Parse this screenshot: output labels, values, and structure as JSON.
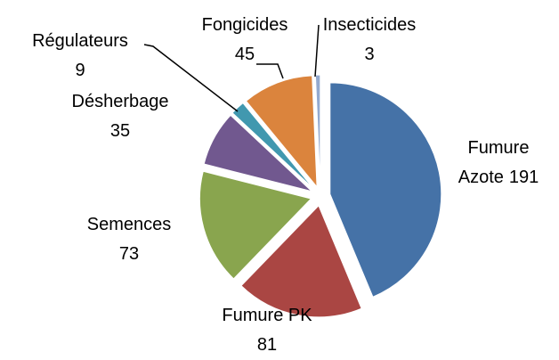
{
  "chart_data": {
    "type": "pie",
    "categories": [
      "Fumure Azote",
      "Fumure PK",
      "Semences",
      "Désherbage",
      "Régulateurs",
      "Fongicides",
      "Insecticides"
    ],
    "values": [
      191,
      81,
      73,
      35,
      9,
      45,
      3
    ],
    "colors": [
      "#4572a7",
      "#aa4643",
      "#89a54e",
      "#71588f",
      "#4198af",
      "#db843d",
      "#93a9cf"
    ]
  }
}
